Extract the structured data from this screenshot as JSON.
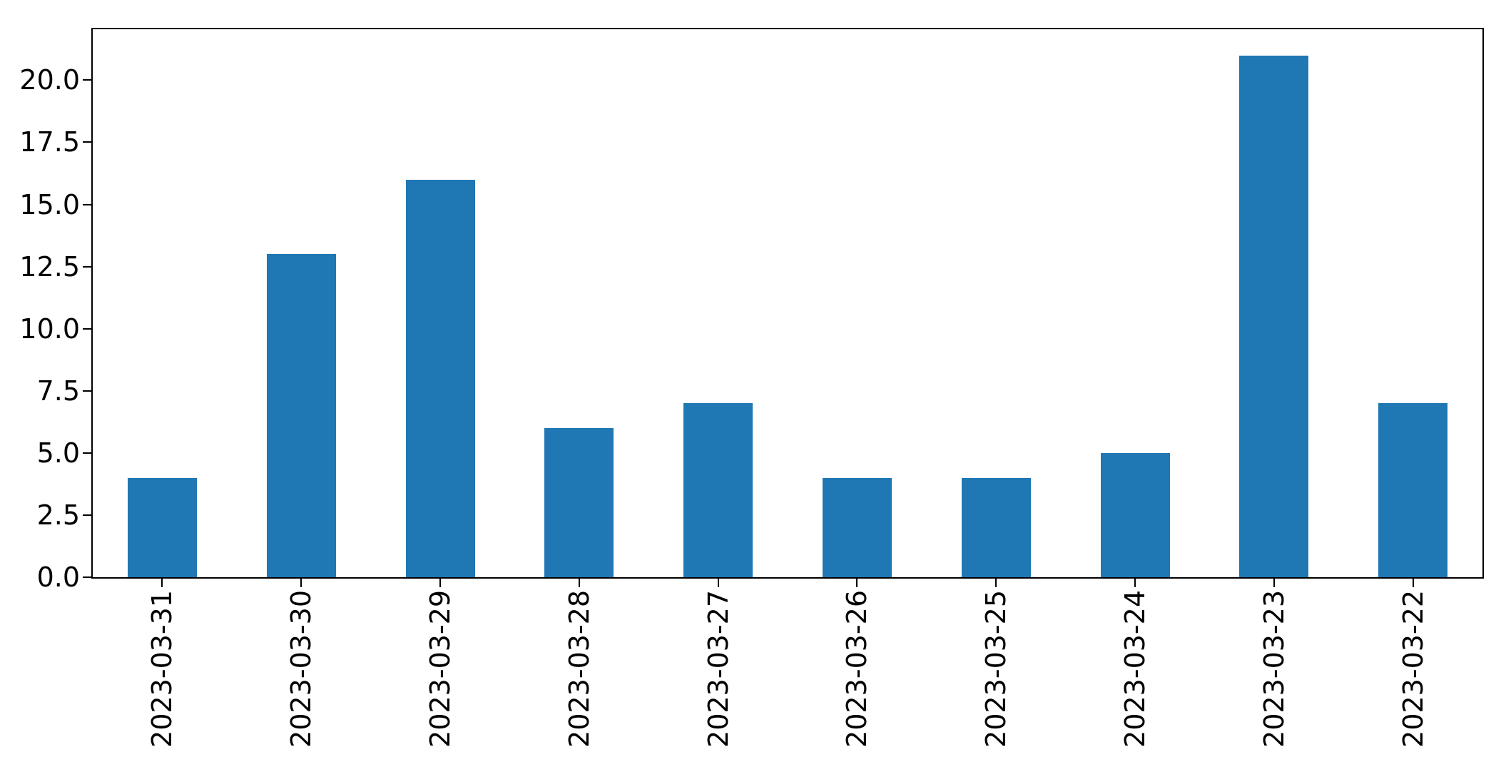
{
  "figure": {
    "background": "#ffffff",
    "spine_color": "#000000",
    "tick_color": "#000000",
    "text_color": "#000000"
  },
  "chart_data": {
    "type": "bar",
    "title": "",
    "xlabel": "",
    "ylabel": "",
    "categories": [
      "2023-03-31",
      "2023-03-30",
      "2023-03-29",
      "2023-03-28",
      "2023-03-27",
      "2023-03-26",
      "2023-03-25",
      "2023-03-24",
      "2023-03-23",
      "2023-03-22"
    ],
    "values": [
      4,
      13,
      16,
      6,
      7,
      4,
      4,
      5,
      21,
      7
    ],
    "bar_color": "#1f77b4",
    "ylim": [
      0,
      22.05
    ],
    "yticks": [
      0.0,
      2.5,
      5.0,
      7.5,
      10.0,
      12.5,
      15.0,
      17.5,
      20.0
    ],
    "ytick_labels": [
      "0.0",
      "2.5",
      "5.0",
      "7.5",
      "10.0",
      "12.5",
      "15.0",
      "17.5",
      "20.0"
    ],
    "x_tick_rotation": 90,
    "grid": false,
    "legend": "none"
  }
}
